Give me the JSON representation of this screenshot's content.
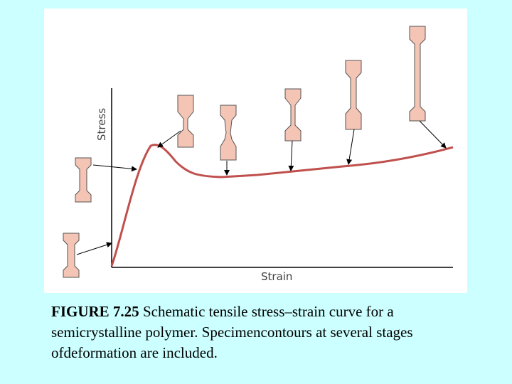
{
  "figure": {
    "ylabel": "Stress",
    "xlabel": "Strain",
    "specimen_color": "#f4c4b4",
    "curve_color": "#c0504d"
  },
  "caption": {
    "label": "FIGURE 7.25",
    "text": " Schematic tensile stress–strain curve for a semicrystalline polymer. Specimencontours at several stages ofdeformation are included."
  }
}
